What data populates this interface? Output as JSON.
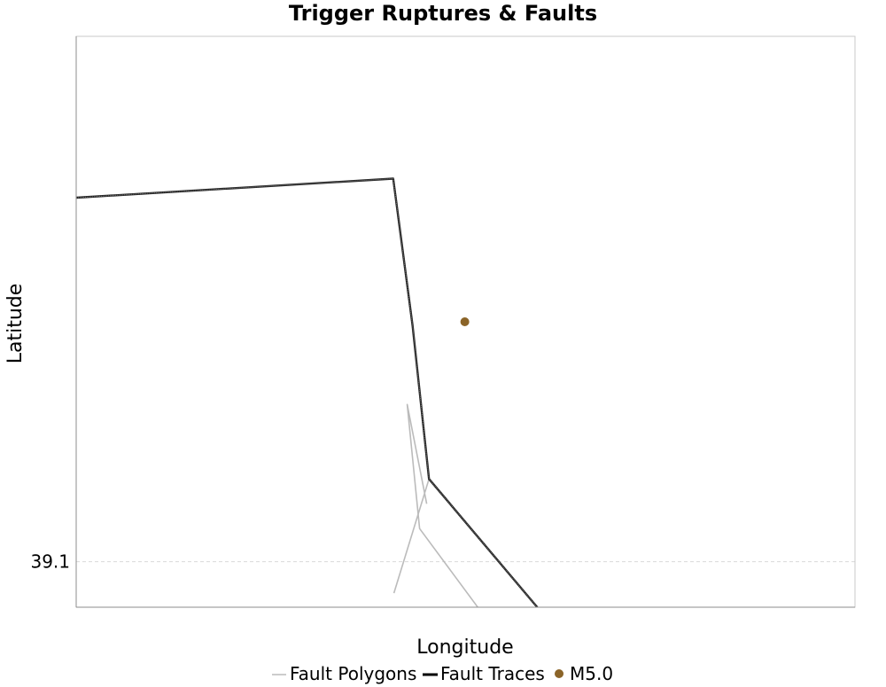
{
  "chart_data": {
    "type": "line",
    "title": "Trigger Ruptures & Faults",
    "xlabel": "Longitude",
    "ylabel": "Latitude",
    "xlim": [
      -119.5,
      -118.5
    ],
    "ylim": [
      39.045,
      39.735
    ],
    "yticks": [
      39.1
    ],
    "ytick_labels": [
      "39.1"
    ],
    "grid": true,
    "legend_position": "bottom",
    "series": [
      {
        "name": "Fault Polygons",
        "kind": "line",
        "color": "#bbbbbb",
        "x": [
          -119.092,
          -119.047
        ],
        "y": [
          39.062,
          39.2
        ]
      },
      {
        "name": "Fault Polygons",
        "kind": "line",
        "color": "#bbbbbb",
        "x": [
          -118.949,
          -119.059,
          -119.075,
          -119.05
        ],
        "y": [
          39.0,
          39.14,
          39.29,
          39.17
        ]
      },
      {
        "name": "Fault Traces",
        "kind": "line",
        "color": "#222222",
        "x": [
          -119.5,
          -119.093,
          -119.068,
          -119.047,
          -118.908
        ],
        "y": [
          39.54,
          39.563,
          39.385,
          39.2,
          39.045
        ]
      },
      {
        "name": "M5.0",
        "kind": "point",
        "color": "#8b6428",
        "x": [
          -119.001
        ],
        "y": [
          39.39
        ]
      }
    ],
    "legend": [
      {
        "label": "Fault Polygons",
        "swatch": "thin-line",
        "color": "#bbbbbb"
      },
      {
        "label": "Fault Traces",
        "swatch": "thick-line",
        "color": "#000000"
      },
      {
        "label": "M5.0",
        "swatch": "dot",
        "color": "#8b6428"
      }
    ]
  }
}
